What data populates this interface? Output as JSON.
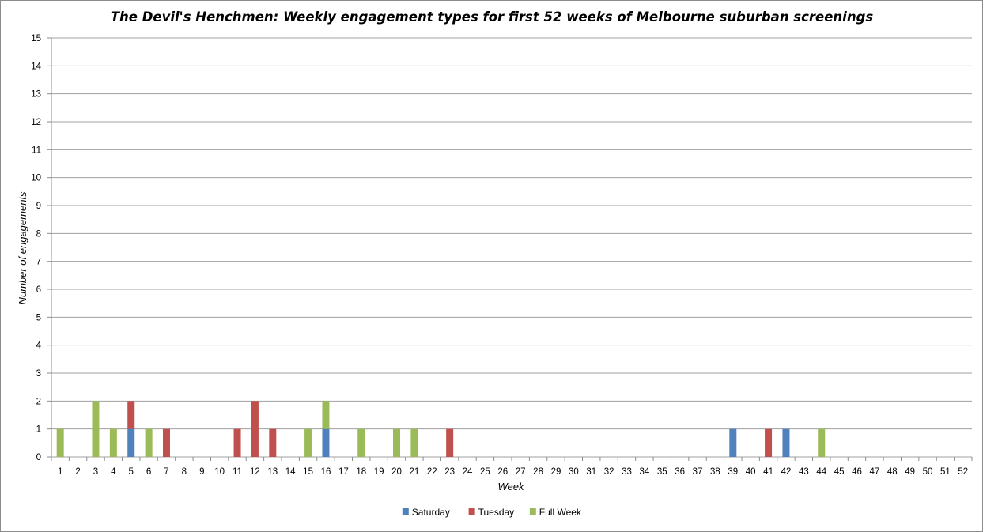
{
  "chart_data": {
    "type": "bar",
    "stacked": true,
    "title": "The Devil's Henchmen: Weekly engagement types for first 52 weeks of Melbourne suburban screenings",
    "xlabel": "Week",
    "ylabel": "Number of engagements",
    "ylim": [
      0,
      15
    ],
    "grid": true,
    "legend_position": "bottom",
    "categories": [
      "1",
      "2",
      "3",
      "4",
      "5",
      "6",
      "7",
      "8",
      "9",
      "10",
      "11",
      "12",
      "13",
      "14",
      "15",
      "16",
      "17",
      "18",
      "19",
      "20",
      "21",
      "22",
      "23",
      "24",
      "25",
      "26",
      "27",
      "28",
      "29",
      "30",
      "31",
      "32",
      "33",
      "34",
      "35",
      "36",
      "37",
      "38",
      "39",
      "40",
      "41",
      "42",
      "43",
      "44",
      "45",
      "46",
      "47",
      "48",
      "49",
      "50",
      "51",
      "52"
    ],
    "series": [
      {
        "name": "Saturday",
        "color": "#4f81bd",
        "values": [
          0,
          0,
          0,
          0,
          1,
          0,
          0,
          0,
          0,
          0,
          0,
          0,
          0,
          0,
          0,
          1,
          0,
          0,
          0,
          0,
          0,
          0,
          0,
          0,
          0,
          0,
          0,
          0,
          0,
          0,
          0,
          0,
          0,
          0,
          0,
          0,
          0,
          0,
          1,
          0,
          0,
          1,
          0,
          0,
          0,
          0,
          0,
          0,
          0,
          0,
          0,
          0
        ]
      },
      {
        "name": "Tuesday",
        "color": "#c0504d",
        "values": [
          0,
          0,
          0,
          0,
          1,
          0,
          1,
          0,
          0,
          0,
          1,
          2,
          1,
          0,
          0,
          0,
          0,
          0,
          0,
          0,
          0,
          0,
          1,
          0,
          0,
          0,
          0,
          0,
          0,
          0,
          0,
          0,
          0,
          0,
          0,
          0,
          0,
          0,
          0,
          0,
          1,
          0,
          0,
          0,
          0,
          0,
          0,
          0,
          0,
          0,
          0,
          0
        ]
      },
      {
        "name": "Full Week",
        "color": "#9bbb59",
        "values": [
          1,
          0,
          2,
          1,
          0,
          1,
          0,
          0,
          0,
          0,
          0,
          0,
          0,
          0,
          1,
          1,
          0,
          1,
          0,
          1,
          1,
          0,
          0,
          0,
          0,
          0,
          0,
          0,
          0,
          0,
          0,
          0,
          0,
          0,
          0,
          0,
          0,
          0,
          0,
          0,
          0,
          0,
          0,
          1,
          0,
          0,
          0,
          0,
          0,
          0,
          0,
          0
        ]
      }
    ]
  }
}
